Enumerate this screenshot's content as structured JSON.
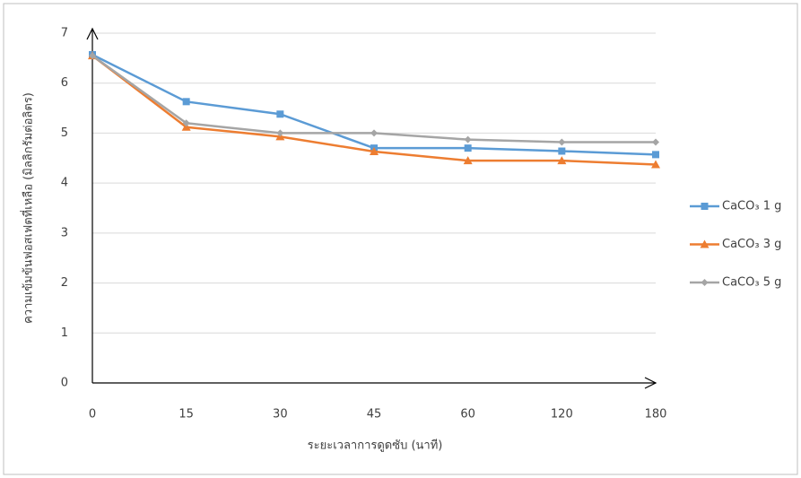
{
  "chart_data": {
    "type": "line",
    "x_label": "ระยะเวลาการดูดซับ (นาที)",
    "y_label": "ความเข้มข้นฟอสเฟตที่เหลือ (มิลลิกรัมต่อลิตร)",
    "categories": [
      "0",
      "15",
      "30",
      "45",
      "60",
      "120",
      "180"
    ],
    "series": [
      {
        "name": "CaCO₃ 1 g",
        "color": "#5b9bd5",
        "marker": "square",
        "values": [
          6.57,
          5.63,
          5.38,
          4.7,
          4.7,
          4.64,
          4.57
        ]
      },
      {
        "name": "CaCO₃ 3 g",
        "color": "#ed7d31",
        "marker": "triangle",
        "values": [
          6.55,
          5.12,
          4.93,
          4.63,
          4.45,
          4.45,
          4.37
        ]
      },
      {
        "name": "CaCO₃ 5 g",
        "color": "#a5a5a5",
        "marker": "diamond",
        "values": [
          6.55,
          5.2,
          5.0,
          5.0,
          4.87,
          4.82,
          4.82
        ]
      }
    ],
    "ylim": [
      0,
      7
    ],
    "yticks": [
      0,
      1,
      2,
      3,
      4,
      5,
      6,
      7
    ],
    "grid": true,
    "legend": "right"
  }
}
